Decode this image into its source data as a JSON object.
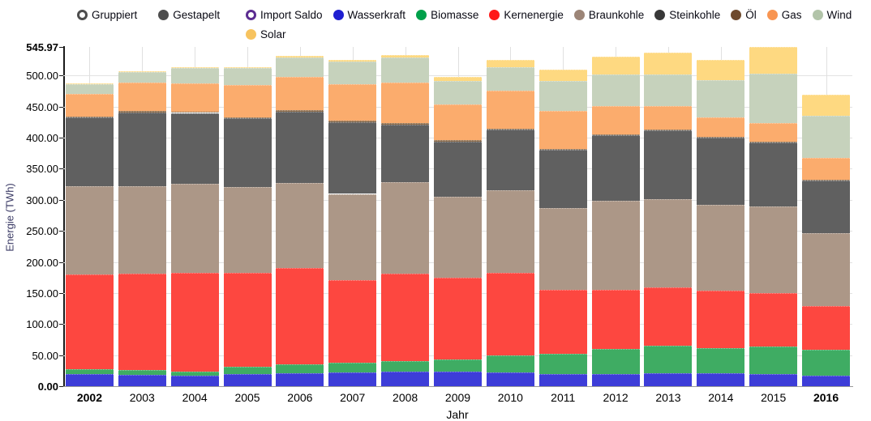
{
  "controls": {
    "modes": [
      {
        "label": "Gruppiert",
        "selected": false
      },
      {
        "label": "Gestapelt",
        "selected": true
      }
    ],
    "mode_color": "#4d4d4d"
  },
  "chart_data": {
    "type": "bar",
    "stacked": true,
    "xlabel": "Jahr",
    "ylabel": "Energie (TWh)",
    "ylim": [
      0,
      545.97
    ],
    "grid": true,
    "legend_position": "top",
    "categories": [
      {
        "label": "2002",
        "bold": true
      },
      {
        "label": "2003",
        "bold": false
      },
      {
        "label": "2004",
        "bold": false
      },
      {
        "label": "2005",
        "bold": false
      },
      {
        "label": "2006",
        "bold": false
      },
      {
        "label": "2007",
        "bold": false
      },
      {
        "label": "2008",
        "bold": false
      },
      {
        "label": "2009",
        "bold": false
      },
      {
        "label": "2010",
        "bold": false
      },
      {
        "label": "2011",
        "bold": false
      },
      {
        "label": "2012",
        "bold": false
      },
      {
        "label": "2013",
        "bold": false
      },
      {
        "label": "2014",
        "bold": false
      },
      {
        "label": "2015",
        "bold": false
      },
      {
        "label": "2016",
        "bold": true
      }
    ],
    "y_ticks": [
      {
        "label": "545.97",
        "value": 545.97,
        "bold": true,
        "grid": false
      },
      {
        "label": "500.00",
        "value": 500,
        "bold": false,
        "grid": true
      },
      {
        "label": "450.00",
        "value": 450,
        "bold": false,
        "grid": true
      },
      {
        "label": "400.00",
        "value": 400,
        "bold": false,
        "grid": true
      },
      {
        "label": "350.00",
        "value": 350,
        "bold": false,
        "grid": true
      },
      {
        "label": "300.00",
        "value": 300,
        "bold": false,
        "grid": true
      },
      {
        "label": "250.00",
        "value": 250,
        "bold": false,
        "grid": true
      },
      {
        "label": "200.00",
        "value": 200,
        "bold": false,
        "grid": true
      },
      {
        "label": "150.00",
        "value": 150,
        "bold": false,
        "grid": true
      },
      {
        "label": "100.00",
        "value": 100,
        "bold": false,
        "grid": true
      },
      {
        "label": "50.00",
        "value": 50,
        "bold": false,
        "grid": true
      },
      {
        "label": "0.00",
        "value": 0,
        "bold": true,
        "grid": false
      }
    ],
    "series": [
      {
        "name": "Import Saldo",
        "enabled": false,
        "legend_row": 1,
        "legend_color": "#5c2d91",
        "color": "#5c2d91",
        "values": [
          0,
          0,
          0,
          0,
          0,
          0,
          0,
          0,
          0,
          0,
          0,
          0,
          0,
          0,
          0
        ]
      },
      {
        "name": "Wasserkraft",
        "enabled": true,
        "legend_row": 1,
        "legend_color": "#1f1fd1",
        "color": "#3d3dd8",
        "values": [
          19.5,
          18.6,
          16.5,
          19.5,
          20.8,
          22.1,
          23.0,
          23.8,
          21.7,
          19.5,
          19.5,
          20.8,
          20.8,
          19.5,
          16.5
        ]
      },
      {
        "name": "Biomasse",
        "enabled": true,
        "legend_row": 1,
        "legend_color": "#00a04a",
        "color": "#3fac63",
        "values": [
          8.5,
          7.4,
          7.3,
          11.5,
          14.4,
          16.1,
          18.0,
          18.8,
          28.2,
          32.6,
          40.8,
          44.2,
          41.0,
          43.8,
          42.5
        ]
      },
      {
        "name": "Kernenergie",
        "enabled": true,
        "legend_row": 1,
        "legend_color": "#ff1a1a",
        "color": "#fd4740",
        "values": [
          151.5,
          154.6,
          158.9,
          151.7,
          155.3,
          132.8,
          139.6,
          131.4,
          132.8,
          102.5,
          95.0,
          93.9,
          91.8,
          86.8,
          70.3
        ]
      },
      {
        "name": "Braunkohle",
        "enabled": true,
        "legend_row": 1,
        "legend_color": "#9c8577",
        "color": "#ac9787",
        "values": [
          142.0,
          141.0,
          143.2,
          137.6,
          136.7,
          138.5,
          147.5,
          130.3,
          132.4,
          132.2,
          143.3,
          142.3,
          137.7,
          139.0,
          116.4
        ]
      },
      {
        "name": "Steinkohle",
        "enabled": true,
        "legend_row": 1,
        "legend_color": "#383838",
        "color": "#606060",
        "values": [
          110.5,
          119.4,
          113.9,
          110.9,
          115.1,
          115.5,
          93.3,
          89.8,
          97.7,
          93.4,
          105.5,
          110.3,
          108.4,
          102.8,
          85.9
        ]
      },
      {
        "name": "Öl",
        "enabled": true,
        "legend_row": 1,
        "legend_color": "#6e4a2d",
        "color": "#8a6a4a",
        "values": [
          2.0,
          2.0,
          2.0,
          2.0,
          2.0,
          2.0,
          2.0,
          2.0,
          2.0,
          1.5,
          1.5,
          1.5,
          1.5,
          1.5,
          1.0
        ]
      },
      {
        "name": "Gas",
        "enabled": true,
        "legend_row": 1,
        "legend_color": "#f89552",
        "color": "#fbac6d",
        "values": [
          37.0,
          45.7,
          45.6,
          52.1,
          54.0,
          58.7,
          65.3,
          57.0,
          60.9,
          61.4,
          44.9,
          37.5,
          32.0,
          30.2,
          35.4
        ]
      },
      {
        "name": "Wind",
        "enabled": true,
        "legend_row": 1,
        "legend_color": "#b2c4a9",
        "color": "#c6d2bc",
        "values": [
          15.5,
          17.0,
          25.2,
          27.1,
          30.3,
          36.8,
          40.0,
          37.8,
          38.0,
          47.8,
          51.2,
          51.2,
          59.8,
          79.0,
          67.3
        ]
      },
      {
        "name": "Solar",
        "enabled": true,
        "legend_row": 2,
        "legend_color": "#f7c35f",
        "color": "#fed981",
        "values": [
          0.5,
          0.5,
          0.8,
          1.5,
          2.5,
          3.1,
          4.4,
          6.5,
          12.0,
          18.0,
          28.2,
          34.8,
          32.6,
          43.4,
          33.8
        ]
      }
    ]
  }
}
